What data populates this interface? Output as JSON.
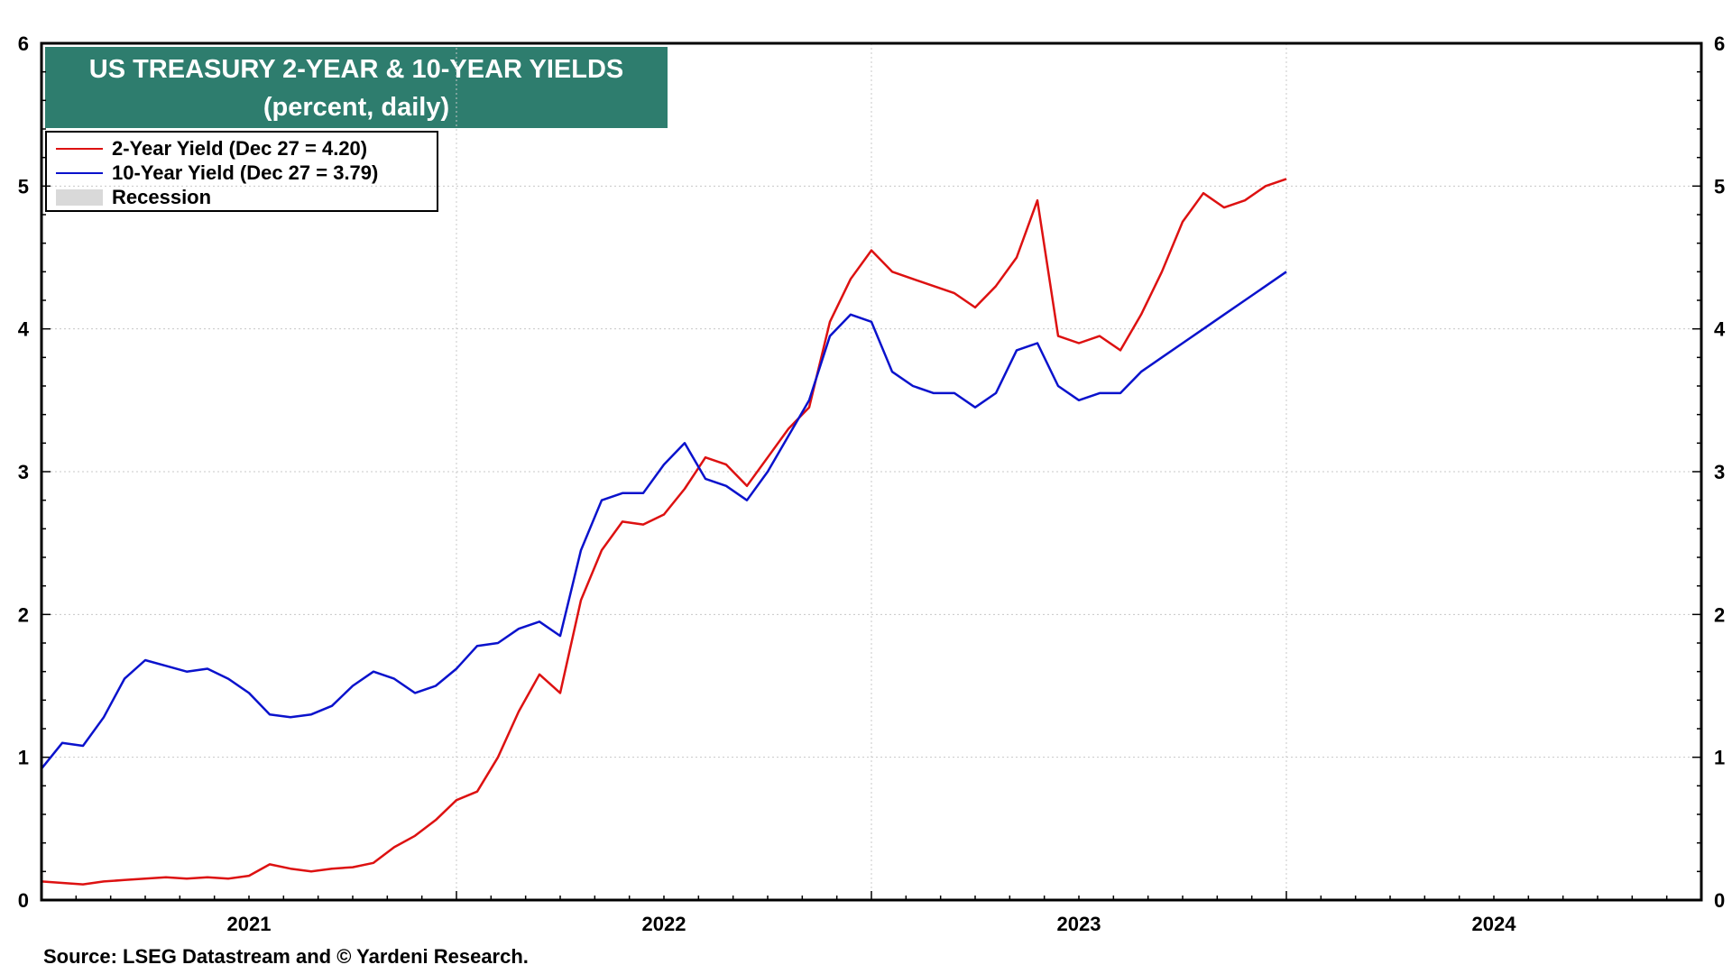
{
  "title": {
    "line1": "US TREASURY 2-YEAR & 10-YEAR YIELDS",
    "line2": "(percent, daily)"
  },
  "legend": {
    "two_year": "2-Year Yield (Dec 27 = 4.20)",
    "ten_year": "10-Year Yield (Dec 27 = 3.79)",
    "recession": "Recession"
  },
  "source": "Source: LSEG Datastream and © Yardeni Research.",
  "colors": {
    "two_year": "#dd1111",
    "ten_year": "#0a12cc",
    "title_bg": "#2e7d6e",
    "recession": "#d9d9d9"
  },
  "chart_data": {
    "type": "line",
    "title": "US TREASURY 2-YEAR & 10-YEAR YIELDS (percent, daily)",
    "xlabel": "",
    "ylabel": "percent",
    "xlim": [
      2021.0,
      2025.0
    ],
    "ylim": [
      0,
      6
    ],
    "yticks": [
      0,
      1,
      2,
      3,
      4,
      5,
      6
    ],
    "x_tick_labels": [
      {
        "x": 2021.5,
        "label": "2021"
      },
      {
        "x": 2022.5,
        "label": "2022"
      },
      {
        "x": 2023.5,
        "label": "2023"
      },
      {
        "x": 2024.5,
        "label": "2024"
      }
    ],
    "series": [
      {
        "name": "2-Year Yield",
        "color": "#dd1111",
        "x": [
          2021.0,
          2021.05,
          2021.1,
          2021.15,
          2021.2,
          2021.25,
          2021.3,
          2021.35,
          2021.4,
          2021.45,
          2021.5,
          2021.55,
          2021.6,
          2021.65,
          2021.7,
          2021.75,
          2021.8,
          2021.85,
          2021.9,
          2021.95,
          2022.0,
          2022.05,
          2022.1,
          2022.15,
          2022.2,
          2022.25,
          2022.3,
          2022.35,
          2022.4,
          2022.45,
          2022.5,
          2022.55,
          2022.6,
          2022.65,
          2022.7,
          2022.75,
          2022.8,
          2022.85,
          2022.9,
          2022.95,
          2023.0,
          2023.05,
          2023.1,
          2023.15,
          2023.2,
          2023.25,
          2023.3,
          2023.35,
          2023.4,
          2023.45,
          2023.5,
          2023.55,
          2023.6,
          2023.65,
          2023.7,
          2023.75,
          2023.8,
          2023.85,
          2023.9,
          2023.95,
          2024.0
        ],
        "y": [
          0.13,
          0.12,
          0.11,
          0.13,
          0.14,
          0.15,
          0.16,
          0.15,
          0.16,
          0.15,
          0.17,
          0.25,
          0.22,
          0.2,
          0.22,
          0.23,
          0.26,
          0.37,
          0.45,
          0.56,
          0.7,
          0.76,
          1.0,
          1.32,
          1.58,
          1.45,
          2.1,
          2.45,
          2.65,
          2.63,
          2.7,
          2.88,
          3.1,
          3.05,
          2.9,
          3.1,
          3.3,
          3.45,
          4.05,
          4.35,
          4.55,
          4.4,
          4.35,
          4.3,
          4.25,
          4.15,
          4.3,
          4.5,
          4.9,
          3.95,
          3.9,
          3.95,
          3.85,
          4.1,
          4.4,
          4.75,
          4.95,
          4.85,
          4.9,
          5.0,
          5.05
        ]
      },
      {
        "name": "10-Year Yield",
        "color": "#0a12cc",
        "x": [
          2021.0,
          2021.05,
          2021.1,
          2021.15,
          2021.2,
          2021.25,
          2021.3,
          2021.35,
          2021.4,
          2021.45,
          2021.5,
          2021.55,
          2021.6,
          2021.65,
          2021.7,
          2021.75,
          2021.8,
          2021.85,
          2021.9,
          2021.95,
          2022.0,
          2022.05,
          2022.1,
          2022.15,
          2022.2,
          2022.25,
          2022.3,
          2022.35,
          2022.4,
          2022.45,
          2022.5,
          2022.55,
          2022.6,
          2022.65,
          2022.7,
          2022.75,
          2022.8,
          2022.85,
          2022.9,
          2022.95,
          2023.0,
          2023.05,
          2023.1,
          2023.15,
          2023.2,
          2023.25,
          2023.3,
          2023.35,
          2023.4,
          2023.45,
          2023.5,
          2023.55,
          2023.6,
          2023.65,
          2023.7,
          2023.75,
          2023.8,
          2023.85,
          2023.9,
          2023.95,
          2024.0
        ],
        "y": [
          0.92,
          1.1,
          1.08,
          1.28,
          1.55,
          1.68,
          1.64,
          1.6,
          1.62,
          1.55,
          1.45,
          1.3,
          1.28,
          1.3,
          1.36,
          1.5,
          1.6,
          1.55,
          1.45,
          1.5,
          1.62,
          1.78,
          1.8,
          1.9,
          1.95,
          1.85,
          2.45,
          2.8,
          2.85,
          2.85,
          3.05,
          3.2,
          2.95,
          2.9,
          2.8,
          3.0,
          3.25,
          3.5,
          3.95,
          4.1,
          4.05,
          3.7,
          3.6,
          3.55,
          3.55,
          3.45,
          3.55,
          3.85,
          3.9,
          3.6,
          3.5,
          3.55,
          3.55,
          3.7,
          3.8,
          3.9,
          4.0,
          4.1,
          4.2,
          4.3,
          4.4
        ]
      }
    ],
    "legend_position": "top-left",
    "grid": true
  }
}
